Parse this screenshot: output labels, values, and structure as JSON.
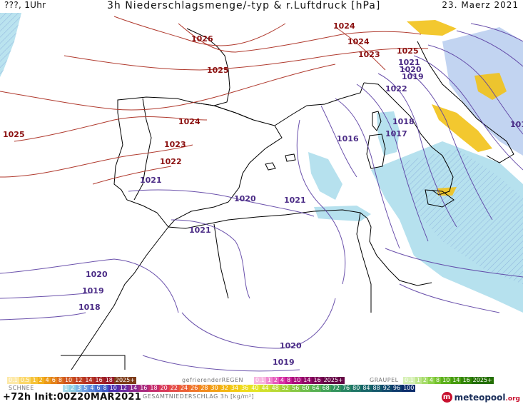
{
  "header": {
    "left": "???, 1Uhr",
    "title": "3h Niederschlagsmenge/-typ & r.Luftdruck [hPa]",
    "date": "23. Maerz 2021"
  },
  "map": {
    "region": "Western Mediterranean / Iberia / North Africa",
    "unit_pressure": "hPa",
    "isobar_labels": [
      "1024",
      "1025",
      "1026",
      "1025",
      "1024",
      "1023",
      "1022",
      "1021",
      "1020",
      "1021",
      "1021",
      "1020",
      "1019",
      "1018",
      "1016",
      "1017",
      "1018",
      "1019",
      "1020",
      "1021",
      "1022",
      "1023",
      "1024",
      "1025",
      "1019",
      "1020",
      "101"
    ],
    "colors": {
      "isobar_high": "#b03a2e",
      "isobar_low": "#5b3fa3",
      "coast": "#000000",
      "rain_light": "#a9dceb",
      "rain_blue": "#8fb0e6",
      "snow": "#f2c218",
      "graupel": "#8ad05a"
    }
  },
  "legend": {
    "snow_label": "SCHNEE",
    "snow_scale": [
      "0.1",
      "0.5",
      "1",
      "2",
      "4",
      "6",
      "8",
      "10",
      "12",
      "14",
      "16",
      "18",
      "2025+"
    ],
    "freezing_label": "gefrierenderREGEN",
    "freezing_scale": [
      "0.1",
      "1",
      "2",
      "4",
      "8",
      "10",
      "14",
      "16",
      "2025+"
    ],
    "graupel_label": "GRAUPEL",
    "graupel_scale": [
      "0.1",
      "1",
      "2",
      "4",
      "8",
      "10",
      "14",
      "16",
      "2025+"
    ],
    "total_label": "GESAMTNIEDERSCHLAG 3h [kg/m²]",
    "total_scale": [
      "1",
      "2",
      "3",
      "5",
      "4",
      "6",
      "8",
      "10",
      "12",
      "14",
      "16",
      "18",
      "20",
      "22",
      "24",
      "26",
      "28",
      "30",
      "32",
      "34",
      "36",
      "40",
      "44",
      "48",
      "52",
      "56",
      "60",
      "64",
      "68",
      "72",
      "76",
      "80",
      "84",
      "88",
      "92",
      "96",
      "100"
    ]
  },
  "footer": {
    "init": "+72h Init:00Z20MAR2021",
    "logo_name": "meteopool",
    "logo_tld": ".org"
  }
}
